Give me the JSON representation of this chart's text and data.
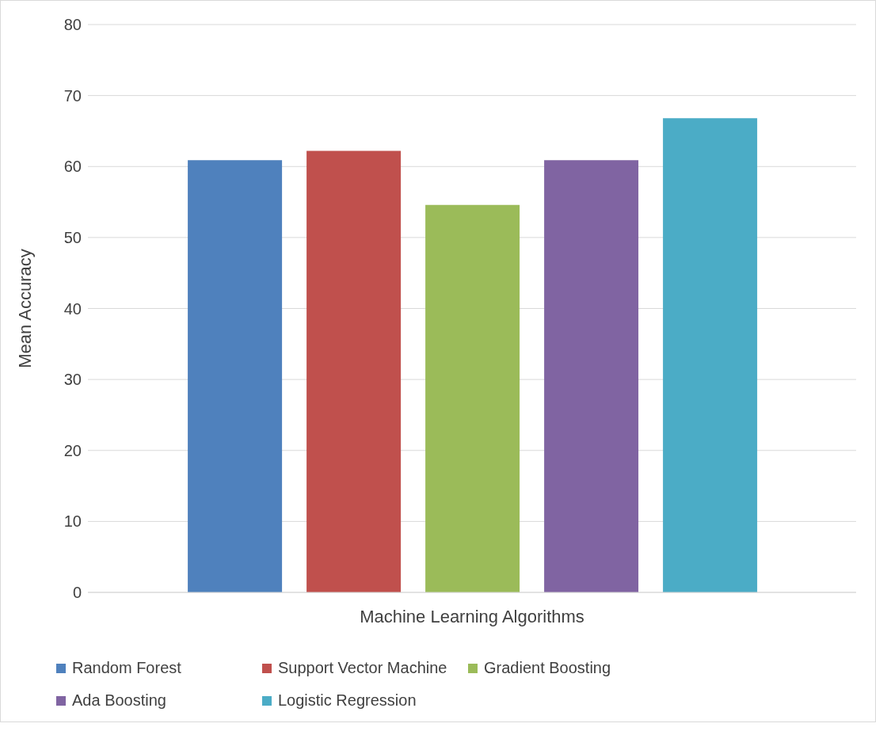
{
  "chart_data": {
    "type": "bar",
    "xlabel": "Machine Learning Algorithms",
    "ylabel": "Mean Accuracy",
    "categories": [
      null
    ],
    "series": [
      {
        "name": "Random Forest",
        "color": "#4f81bd",
        "values": [
          60.9
        ]
      },
      {
        "name": "Support Vector Machine",
        "color": "#c0504d",
        "values": [
          62.2
        ]
      },
      {
        "name": "Gradient Boosting",
        "color": "#9bbb59",
        "values": [
          54.6
        ]
      },
      {
        "name": "Ada Boosting",
        "color": "#8064a2",
        "values": [
          60.9
        ]
      },
      {
        "name": "Logistic Regression",
        "color": "#4bacc6",
        "values": [
          66.8
        ]
      }
    ],
    "ylim": [
      0,
      80
    ],
    "yticks": [
      0,
      10,
      20,
      30,
      40,
      50,
      60,
      70,
      80
    ],
    "grid": "y",
    "legend": "bottom"
  }
}
